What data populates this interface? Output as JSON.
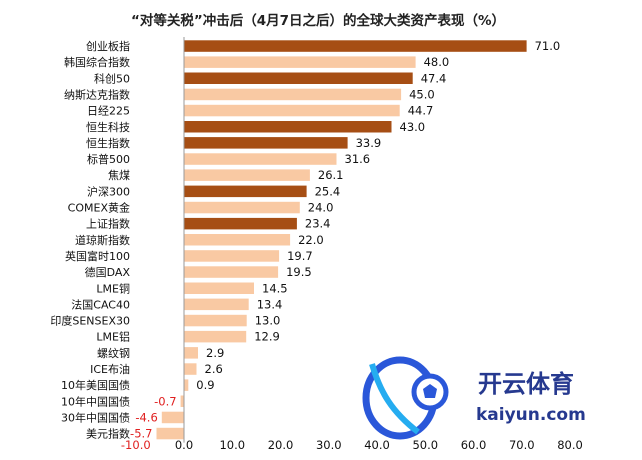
{
  "chart_data": {
    "type": "bar",
    "orientation": "horizontal",
    "title": "“对等关税”冲击后（4月7日之后）的全球大类资产表现（%）",
    "categories": [
      "创业板指",
      "韩国综合指数",
      "科创50",
      "纳斯达克指数",
      "日经225",
      "恒生科技",
      "恒生指数",
      "标普500",
      "焦煤",
      "沪深300",
      "COMEX黄金",
      "上证指数",
      "道琼斯指数",
      "英国富时100",
      "德国DAX",
      "LME铜",
      "法国CAC40",
      "印度SENSEX30",
      "LME铝",
      "螺纹钢",
      "ICE布油",
      "10年美国国债",
      "10年中国国债",
      "30年中国国债",
      "美元指数"
    ],
    "values": [
      71.0,
      48.0,
      47.4,
      45.0,
      44.7,
      43.0,
      33.9,
      31.6,
      26.1,
      25.4,
      24.0,
      23.4,
      22.0,
      19.7,
      19.5,
      14.5,
      13.4,
      13.0,
      12.9,
      2.9,
      2.6,
      0.9,
      -0.7,
      -4.6,
      -5.7
    ],
    "value_labels": [
      "71.0",
      "48.0",
      "47.4",
      "45.0",
      "44.7",
      "43.0",
      "33.9",
      "31.6",
      "26.1",
      "25.4",
      "24.0",
      "23.4",
      "22.0",
      "19.7",
      "19.5",
      "14.5",
      "13.4",
      "13.0",
      "12.9",
      "2.9",
      "2.6",
      "0.9",
      "-0.7",
      "-4.6",
      "-5.7"
    ],
    "highlight": [
      true,
      false,
      true,
      false,
      false,
      true,
      true,
      false,
      false,
      true,
      false,
      true,
      false,
      false,
      false,
      false,
      false,
      false,
      false,
      false,
      false,
      false,
      false,
      false,
      false
    ],
    "xlim": [
      -10,
      80
    ],
    "xticks": [
      "-10.0",
      "0.0",
      "10.0",
      "20.0",
      "30.0",
      "40.0",
      "50.0",
      "60.0",
      "70.0",
      "80.0"
    ],
    "xtick_values": [
      -10,
      0,
      10,
      20,
      30,
      40,
      50,
      60,
      70,
      80
    ],
    "xlabel": "",
    "ylabel": "",
    "grid": false,
    "colors": {
      "highlight": "#a64e14",
      "normal": "#f9c9a3",
      "axis": "#999999",
      "negative_text": "#e02020"
    }
  },
  "watermark": {
    "brand_cn": "开云体育",
    "brand_url": "kaiyun.com"
  }
}
